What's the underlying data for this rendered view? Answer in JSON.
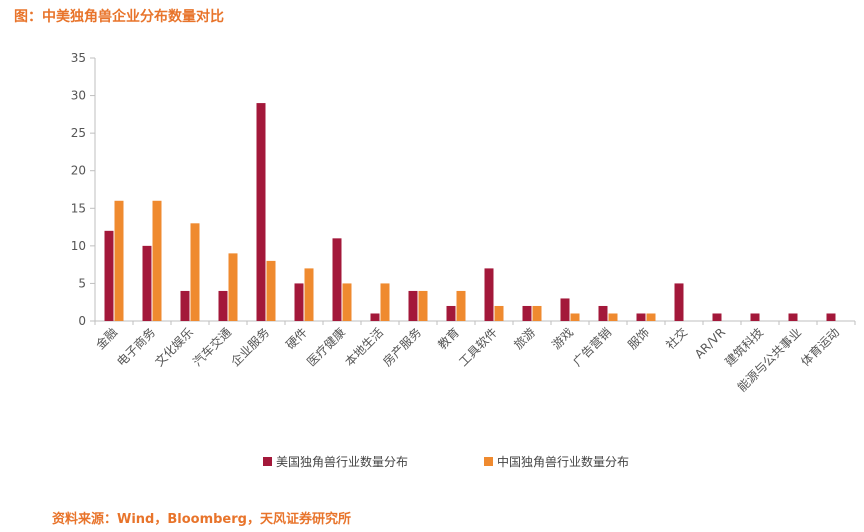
{
  "title": "图：中美独角兽企业分布数量对比",
  "source": "资料来源：Wind，Bloomberg，天风证券研究所",
  "chart_data": {
    "type": "bar",
    "categories": [
      "金融",
      "电子商务",
      "文化娱乐",
      "汽车交通",
      "企业服务",
      "硬件",
      "医疗健康",
      "本地生活",
      "房产服务",
      "教育",
      "工具软件",
      "旅游",
      "游戏",
      "广告营销",
      "服饰",
      "社交",
      "AR/VR",
      "建筑科技",
      "能源与公共事业",
      "体育运动"
    ],
    "series": [
      {
        "name": "美国独角兽行业数量分布",
        "color": "#a3183a",
        "values": [
          12,
          10,
          4,
          4,
          29,
          5,
          11,
          1,
          4,
          2,
          7,
          2,
          3,
          2,
          1,
          5,
          1,
          1,
          1,
          1
        ]
      },
      {
        "name": "中国独角兽行业数量分布",
        "color": "#ef8a2f",
        "values": [
          16,
          16,
          13,
          9,
          8,
          7,
          5,
          5,
          4,
          4,
          2,
          2,
          1,
          1,
          1,
          0,
          0,
          0,
          0,
          0
        ]
      }
    ],
    "ylim": [
      0,
      35
    ],
    "yticks": [
      0,
      5,
      10,
      15,
      20,
      25,
      30,
      35
    ],
    "xlabel": "",
    "ylabel": "",
    "legend_position": "bottom",
    "grid": false
  }
}
